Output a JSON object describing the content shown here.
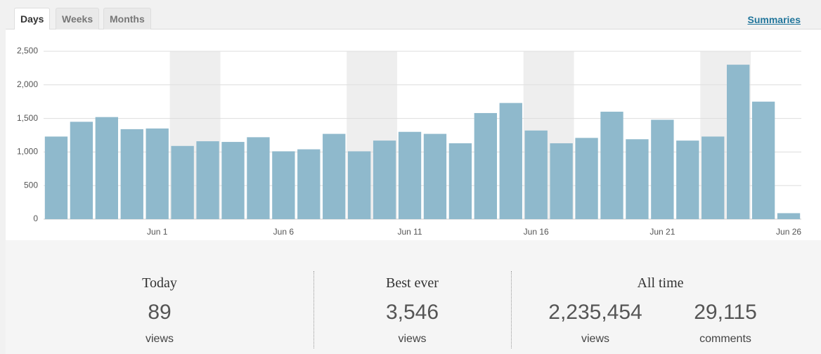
{
  "tabs": [
    "Days",
    "Weeks",
    "Months"
  ],
  "link": "Summaries",
  "chart_data": {
    "type": "bar",
    "color": "#8fb9cc",
    "categories": [
      null,
      null,
      null,
      null,
      "Jun 1",
      null,
      null,
      null,
      null,
      "Jun 6",
      null,
      null,
      null,
      null,
      "Jun 11",
      null,
      null,
      null,
      null,
      "Jun 16",
      null,
      null,
      null,
      null,
      "Jun 21",
      null,
      null,
      null,
      null,
      "Jun 26"
    ],
    "values": [
      1230,
      1450,
      1520,
      1340,
      1350,
      1090,
      1160,
      1150,
      1220,
      1010,
      1040,
      1270,
      1010,
      1170,
      1300,
      1270,
      1130,
      1580,
      1730,
      1320,
      1130,
      1210,
      1600,
      1190,
      1480,
      1170,
      1230,
      2300,
      1750,
      89
    ],
    "ylim": [
      0,
      2500
    ],
    "yticks": [
      0,
      500,
      {
        "value": 1000,
        "label": "1,000"
      },
      {
        "value": 1500,
        "label": "1,500"
      },
      {
        "value": 2000,
        "label": "2,000"
      },
      {
        "value": 2500,
        "label": "2,500"
      }
    ],
    "grid": true
  },
  "stats": [
    {
      "title": "Today",
      "items": [
        {
          "number": "89",
          "unit": "views"
        }
      ]
    },
    {
      "title": "Best ever",
      "items": [
        {
          "number": "3,546",
          "unit": "views"
        }
      ]
    },
    {
      "title": "All time",
      "items": [
        {
          "number": "2,235,454",
          "unit": "views"
        },
        {
          "number": "29,115",
          "unit": "comments"
        }
      ]
    }
  ]
}
